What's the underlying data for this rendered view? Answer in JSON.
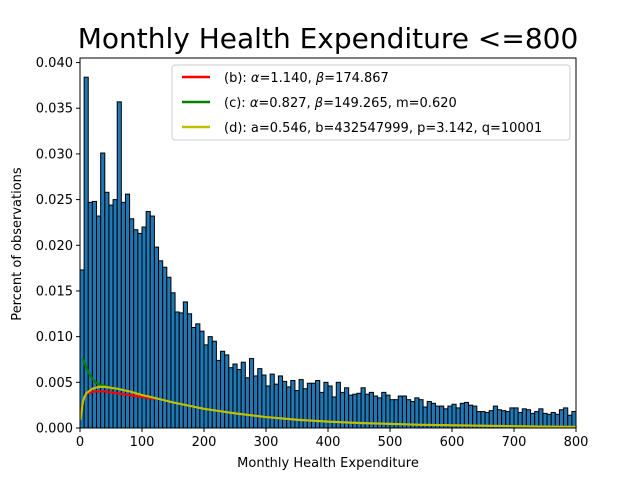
{
  "chart_data": {
    "type": "bar",
    "title": "Monthly Health Expenditure <=800",
    "xlabel": "Monthly Health Expenditure",
    "ylabel": "Percent of observations",
    "xlim": [
      0,
      800
    ],
    "ylim": [
      0,
      0.0405
    ],
    "xticks": [
      "0",
      "100",
      "200",
      "300",
      "400",
      "500",
      "600",
      "700",
      "800"
    ],
    "yticks": [
      "0.000",
      "0.005",
      "0.010",
      "0.015",
      "0.020",
      "0.025",
      "0.030",
      "0.035",
      "0.040"
    ],
    "grid": false,
    "legend_position": "top-right",
    "bar_color": "#1f77b4",
    "bar_width": 6.6667,
    "bars": [
      0.0173,
      0.0384,
      0.0247,
      0.0248,
      0.0232,
      0.0301,
      0.0258,
      0.0244,
      0.025,
      0.0357,
      0.0247,
      0.0256,
      0.0229,
      0.0217,
      0.0213,
      0.022,
      0.0237,
      0.0232,
      0.0198,
      0.0183,
      0.0176,
      0.0165,
      0.0148,
      0.0127,
      0.0126,
      0.0138,
      0.0125,
      0.011,
      0.0114,
      0.0106,
      0.0091,
      0.01,
      0.0095,
      0.0074,
      0.0084,
      0.008,
      0.0066,
      0.007,
      0.0064,
      0.0072,
      0.0055,
      0.0076,
      0.0057,
      0.0065,
      0.0058,
      0.0046,
      0.0059,
      0.0048,
      0.0057,
      0.0051,
      0.0045,
      0.0052,
      0.0041,
      0.0053,
      0.0043,
      0.0049,
      0.0049,
      0.0052,
      0.0039,
      0.005,
      0.0046,
      0.0034,
      0.005,
      0.0039,
      0.0044,
      0.0036,
      0.0037,
      0.0038,
      0.0044,
      0.0037,
      0.0039,
      0.0035,
      0.0033,
      0.0039,
      0.0036,
      0.0031,
      0.0031,
      0.0035,
      0.0035,
      0.0031,
      0.0029,
      0.0033,
      0.0031,
      0.0023,
      0.0029,
      0.0027,
      0.0024,
      0.0024,
      0.0021,
      0.0024,
      0.0026,
      0.0022,
      0.0027,
      0.0028,
      0.0025,
      0.0024,
      0.0018,
      0.0018,
      0.0017,
      0.0019,
      0.0024,
      0.002,
      0.0019,
      0.0018,
      0.0022,
      0.0022,
      0.0017,
      0.0021,
      0.002,
      0.0016,
      0.0018,
      0.0021,
      0.0016,
      0.0015,
      0.0017,
      0.0015,
      0.002,
      0.0022,
      0.0014,
      0.0018
    ],
    "series": [
      {
        "name": "(b): α=1.140, β=174.867",
        "legend_parts": [
          {
            "t": "(b): "
          },
          {
            "t": "α",
            "i": true
          },
          {
            "t": "=1.140, "
          },
          {
            "t": "β",
            "i": true
          },
          {
            "t": "=174.867"
          }
        ],
        "color": "#ff0000",
        "x": [
          1,
          5,
          10,
          15,
          20,
          25,
          30,
          40,
          50,
          60,
          70,
          80,
          90,
          100,
          110,
          120
        ],
        "y": [
          0.0012,
          0.003,
          0.0037,
          0.0039,
          0.00395,
          0.004,
          0.004,
          0.004,
          0.0039,
          0.0038,
          0.0037,
          0.0036,
          0.0035,
          0.0034,
          0.0033,
          0.0032
        ]
      },
      {
        "name": "(c): α=0.827, β=149.265, m=0.620",
        "legend_parts": [
          {
            "t": "(c): "
          },
          {
            "t": "α",
            "i": true
          },
          {
            "t": "=0.827, "
          },
          {
            "t": "β",
            "i": true
          },
          {
            "t": "=149.265, m=0.620"
          }
        ],
        "color": "#008000",
        "x": [
          5,
          10,
          15,
          20,
          25,
          30,
          40,
          50,
          60
        ],
        "y": [
          0.0075,
          0.0066,
          0.0059,
          0.0054,
          0.005,
          0.0048,
          0.0046,
          0.0044,
          0.0043
        ]
      },
      {
        "name": "(d): a=0.546, b=432547999, p=3.142, q=10001",
        "legend_parts": [
          {
            "t": "(d): a=0.546, b=432547999, p=3.142, q=10001"
          }
        ],
        "color": "#bfbf00",
        "x": [
          1,
          5,
          10,
          20,
          30,
          40,
          50,
          60,
          80,
          100,
          120,
          150,
          200,
          250,
          300,
          350,
          400,
          450,
          500,
          550,
          600,
          650,
          700,
          750,
          800
        ],
        "y": [
          0.001,
          0.003,
          0.0038,
          0.0043,
          0.0045,
          0.0045,
          0.0044,
          0.0043,
          0.004,
          0.0036,
          0.0033,
          0.0028,
          0.0021,
          0.0016,
          0.0012,
          0.0009,
          0.0007,
          0.00055,
          0.00045,
          0.00035,
          0.0003,
          0.00025,
          0.0002,
          0.00016,
          0.00013
        ]
      }
    ]
  }
}
